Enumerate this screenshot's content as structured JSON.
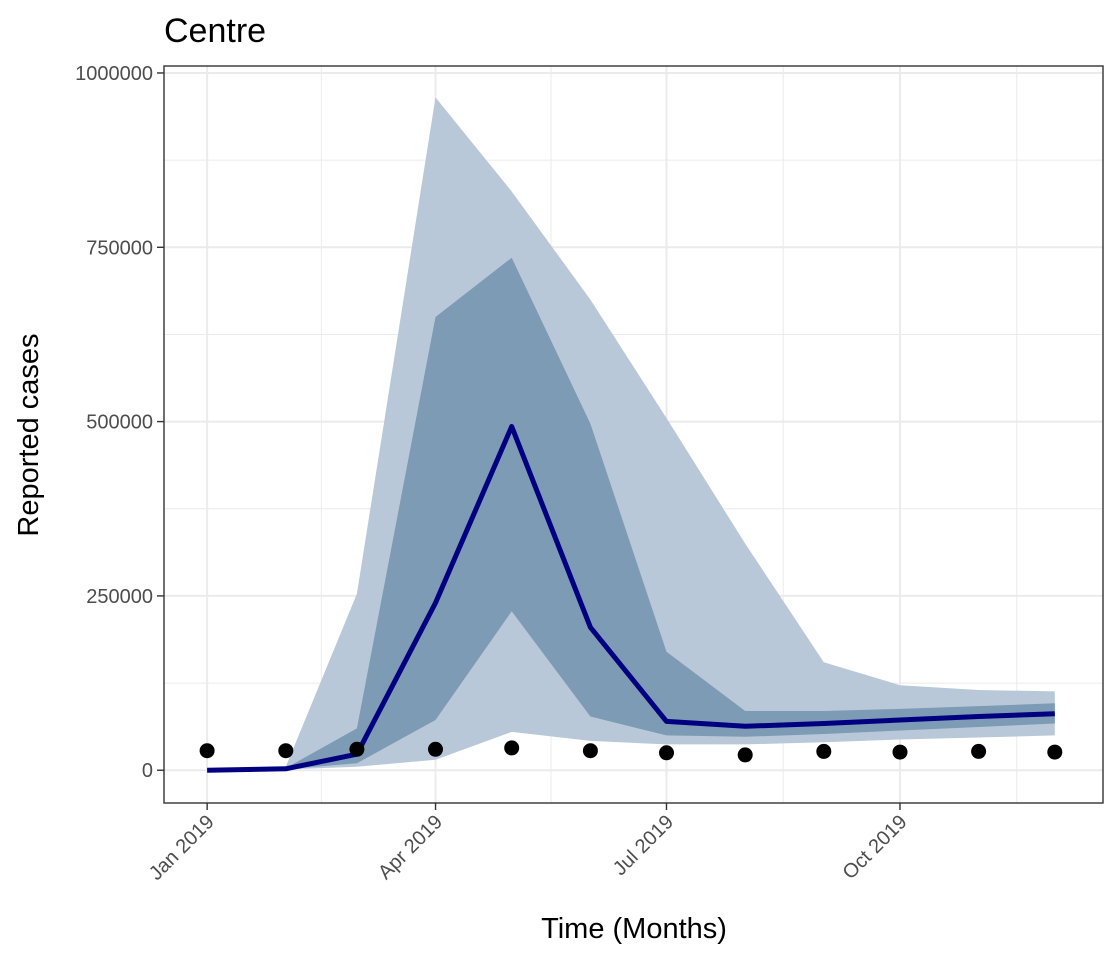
{
  "chart_data": {
    "type": "line",
    "title": "Centre",
    "xlabel": "Time (Months)",
    "ylabel": "Reported cases",
    "x": [
      "2019-01-01",
      "2019-02-01",
      "2019-03-01",
      "2019-04-01",
      "2019-05-01",
      "2019-06-01",
      "2019-07-01",
      "2019-08-01",
      "2019-09-01",
      "2019-10-01",
      "2019-11-01",
      "2019-12-01"
    ],
    "x_ticks": [
      {
        "date": "2019-01-01",
        "label": "Jan 2019"
      },
      {
        "date": "2019-04-01",
        "label": "Apr 2019"
      },
      {
        "date": "2019-07-01",
        "label": "Jul 2019"
      },
      {
        "date": "2019-10-01",
        "label": "Oct 2019"
      }
    ],
    "y_ticks": [
      0,
      250000,
      500000,
      750000,
      1000000
    ],
    "y_tick_labels": [
      "0",
      "250000",
      "500000",
      "750000",
      "1000000"
    ],
    "xlim": [
      "2018-12-15",
      "2019-12-20"
    ],
    "ylim": [
      -47000,
      1010000
    ],
    "grid": true,
    "series": [
      {
        "kind": "band",
        "color": "#b8c8d8",
        "lower": [
          0,
          1000,
          5000,
          15000,
          55000,
          42000,
          37000,
          37000,
          40000,
          44000,
          47000,
          50000
        ],
        "upper": [
          0,
          5000,
          253000,
          965000,
          830000,
          675000,
          505000,
          325000,
          155000,
          122000,
          115000,
          113000
        ]
      },
      {
        "kind": "band",
        "color": "#7d9bb4",
        "lower": [
          0,
          1500,
          10000,
          72000,
          228000,
          77000,
          50000,
          48000,
          52000,
          57000,
          62000,
          67000
        ],
        "upper": [
          0,
          3000,
          60000,
          650000,
          735000,
          497000,
          170000,
          85000,
          85000,
          88000,
          92000,
          96000
        ]
      },
      {
        "kind": "line",
        "color": "#000080",
        "values": [
          0,
          2000,
          23000,
          240000,
          493000,
          205000,
          70000,
          63000,
          67000,
          72000,
          77000,
          81000
        ]
      },
      {
        "kind": "points",
        "color": "#000000",
        "values": [
          28000,
          28000,
          30000,
          30000,
          32000,
          28000,
          25000,
          22000,
          27000,
          26000,
          27000,
          26000
        ]
      }
    ]
  }
}
